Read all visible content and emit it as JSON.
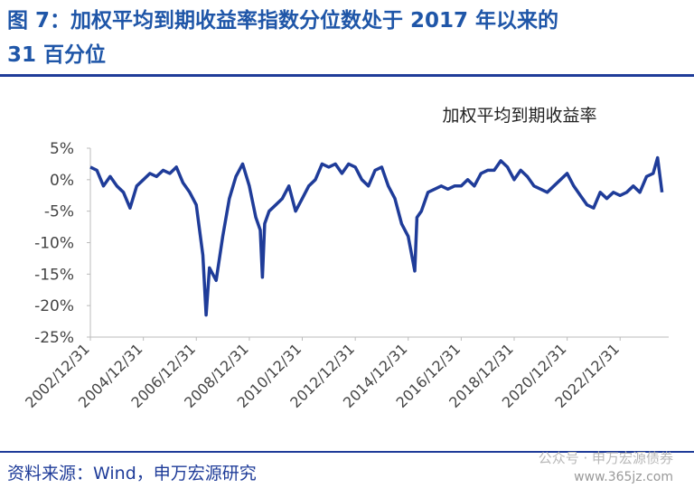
{
  "chart_data": {
    "type": "line",
    "title": [
      "图 7：加权平均到期收益率指数分位数处于 2017 年以来的",
      "31 百分位"
    ],
    "subtitle": "加权平均到期收益率",
    "source": "资料来源：Wind，申万宏源研究",
    "watermark": [
      "公众号 · 申万宏源债券",
      "www.365jz.com"
    ],
    "x": [
      "2002/12/31",
      "2003/03/31",
      "2003/06/30",
      "2003/09/30",
      "2003/12/31",
      "2004/03/31",
      "2004/06/30",
      "2004/09/30",
      "2004/12/31",
      "2005/03/31",
      "2005/06/30",
      "2005/09/30",
      "2005/12/31",
      "2006/03/31",
      "2006/06/30",
      "2006/09/30",
      "2006/12/31",
      "2007/03/31",
      "2007/05/15",
      "2007/06/30",
      "2007/09/30",
      "2007/12/31",
      "2008/03/31",
      "2008/06/30",
      "2008/09/30",
      "2008/12/31",
      "2009/03/31",
      "2009/05/31",
      "2009/06/30",
      "2009/07/31",
      "2009/09/30",
      "2009/12/31",
      "2010/03/31",
      "2010/06/30",
      "2010/09/30",
      "2010/12/31",
      "2011/03/31",
      "2011/06/30",
      "2011/09/30",
      "2011/12/31",
      "2012/03/31",
      "2012/06/30",
      "2012/09/30",
      "2012/12/31",
      "2013/03/31",
      "2013/06/30",
      "2013/09/30",
      "2013/12/31",
      "2014/03/31",
      "2014/06/30",
      "2014/09/30",
      "2014/12/31",
      "2015/03/31",
      "2015/04/30",
      "2015/06/30",
      "2015/09/30",
      "2015/12/31",
      "2016/03/31",
      "2016/06/30",
      "2016/09/30",
      "2016/12/31",
      "2017/03/31",
      "2017/06/30",
      "2017/09/30",
      "2017/12/31",
      "2018/03/31",
      "2018/06/30",
      "2018/09/30",
      "2018/12/31",
      "2019/03/31",
      "2019/06/30",
      "2019/09/30",
      "2019/12/31",
      "2020/03/31",
      "2020/06/30",
      "2020/09/30",
      "2020/12/31",
      "2021/03/31",
      "2021/06/30",
      "2021/09/30",
      "2021/12/31",
      "2022/03/31",
      "2022/06/30",
      "2022/09/30",
      "2022/12/31",
      "2023/03/31",
      "2023/06/30",
      "2023/09/30",
      "2023/12/31",
      "2024/03/31",
      "2024/05/31",
      "2024/07/31"
    ],
    "series": [
      {
        "name": "加权平均到期收益率",
        "color": "#1f3c99",
        "values": [
          2,
          1.5,
          -1,
          0.5,
          -1,
          -2,
          -4.5,
          -1,
          0,
          1,
          0.5,
          1.5,
          1,
          2,
          -0.5,
          -2,
          -4,
          -12,
          -21.5,
          -14,
          -16,
          -9,
          -3,
          0.5,
          2.5,
          -1,
          -6,
          -8,
          -15.5,
          -7,
          -5,
          -4,
          -3,
          -1,
          -5,
          -3,
          -1,
          0,
          2.5,
          2,
          2.5,
          1,
          2.5,
          2,
          0,
          -1,
          1.5,
          2,
          -1,
          -3,
          -7,
          -9,
          -14.5,
          -6,
          -5,
          -2,
          -1.5,
          -1,
          -1.5,
          -1,
          -1,
          0,
          -1,
          1,
          1.5,
          1.5,
          3,
          2,
          0,
          1.5,
          0.5,
          -1,
          -1.5,
          -2,
          -1,
          0,
          1,
          -1,
          -2.5,
          -4,
          -4.5,
          -2,
          -3,
          -2,
          -2.5,
          -2,
          -1,
          -2,
          0.5,
          1,
          3.5,
          -2
        ]
      }
    ],
    "xlim": [
      "2002/12/31",
      "2024/10/31"
    ],
    "xticks": [
      "2002/12/31",
      "2004/12/31",
      "2006/12/31",
      "2008/12/31",
      "2010/12/31",
      "2012/12/31",
      "2014/12/31",
      "2016/12/31",
      "2018/12/31",
      "2020/12/31",
      "2022/12/31"
    ],
    "ylim": [
      -25,
      5
    ],
    "yticks": [
      {
        "value": 5,
        "label": "5%"
      },
      {
        "value": 0,
        "label": "0%"
      },
      {
        "value": -5,
        "label": "-5%"
      },
      {
        "value": -10,
        "label": "-10%"
      },
      {
        "value": -15,
        "label": "-15%"
      },
      {
        "value": -20,
        "label": "-20%"
      },
      {
        "value": -25,
        "label": "-25%"
      }
    ]
  }
}
